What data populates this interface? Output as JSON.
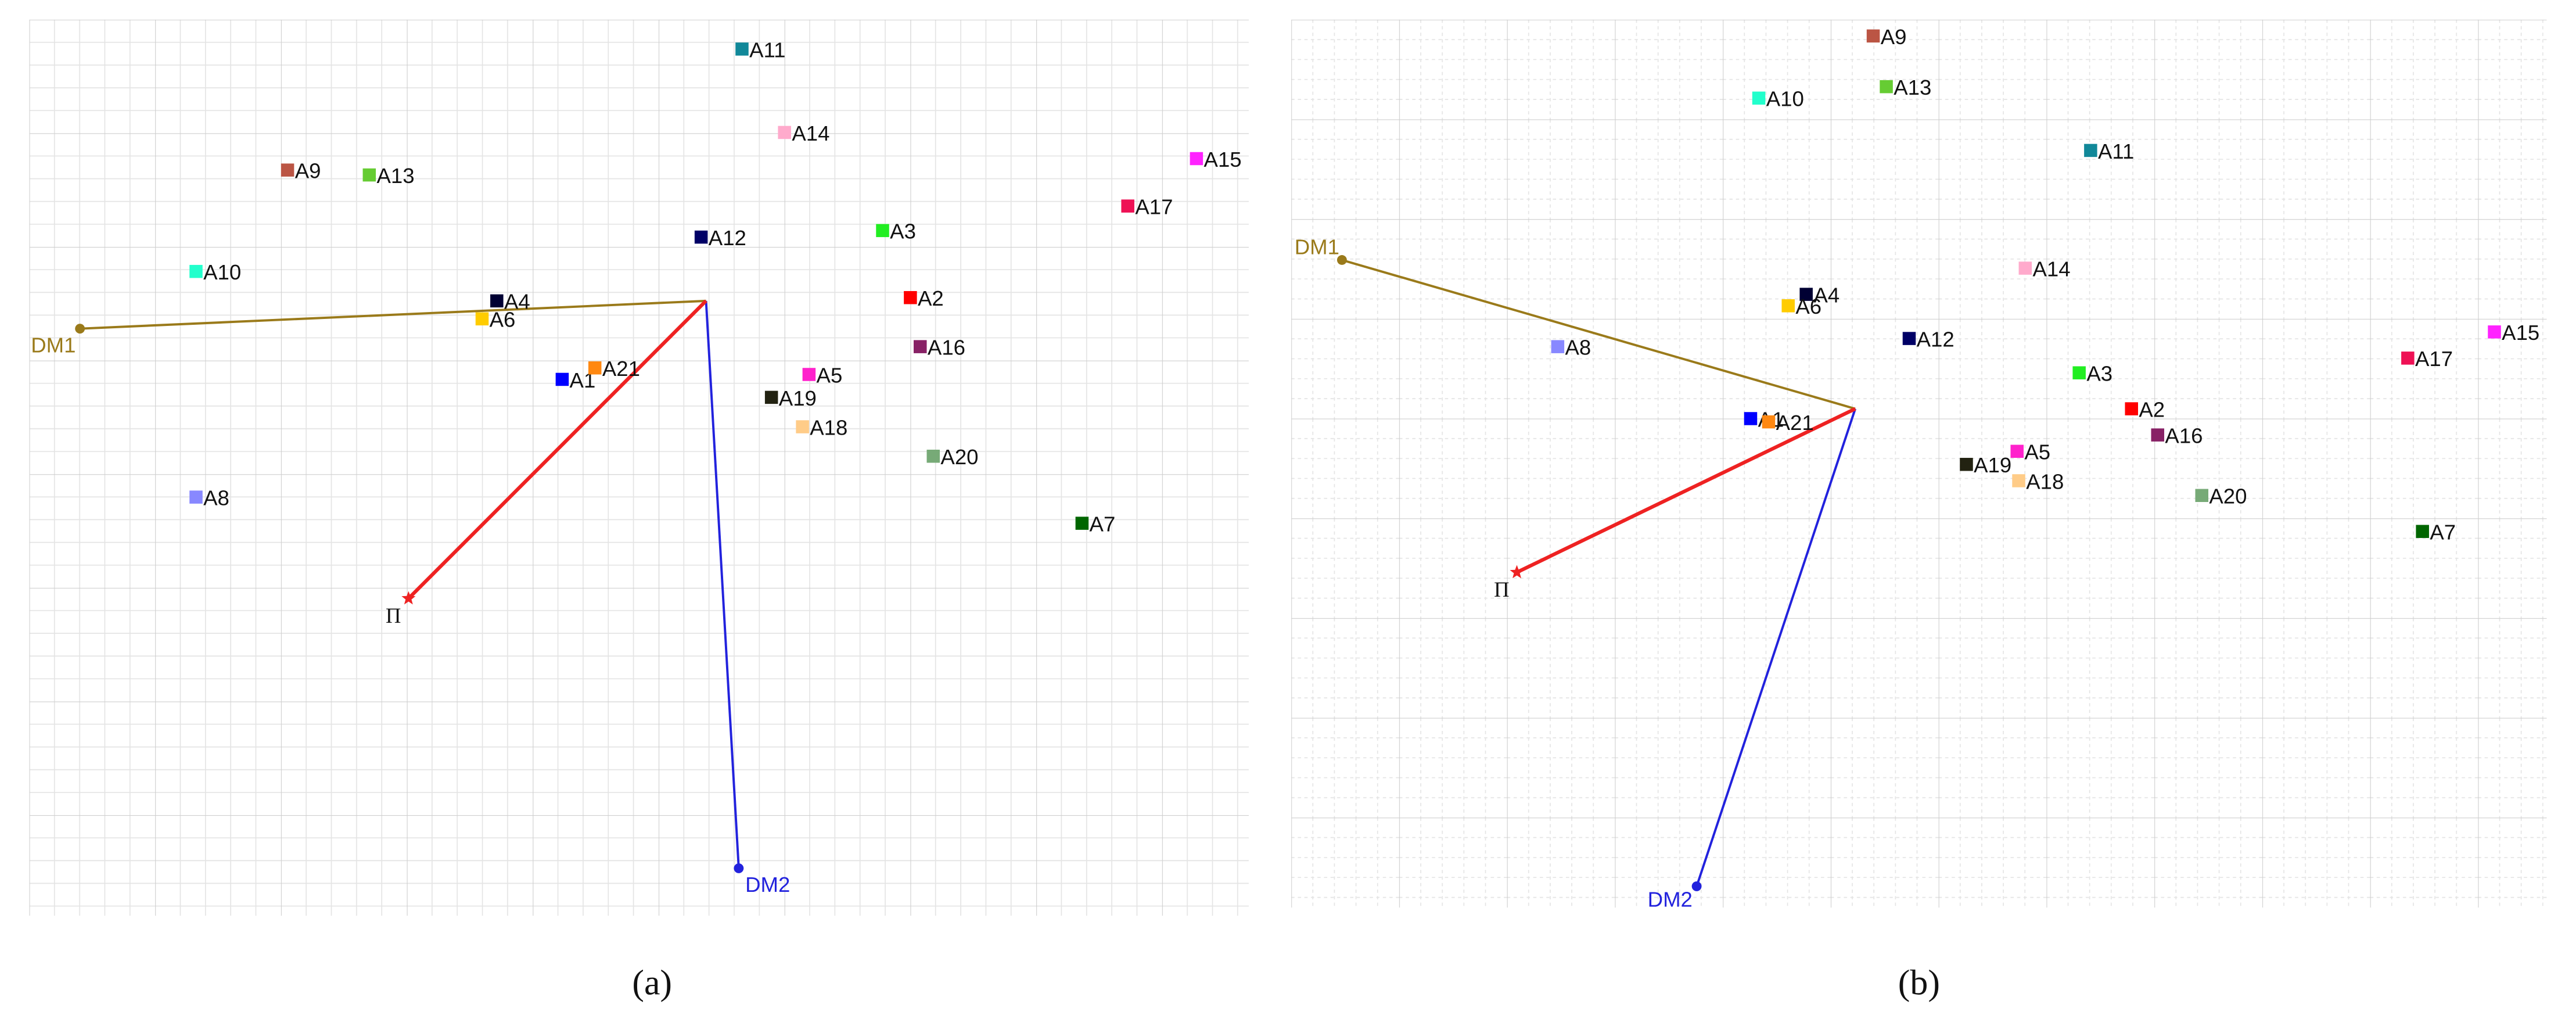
{
  "chart_data": [
    {
      "type": "scatter",
      "caption": "(a)",
      "grid": true,
      "xlim": [
        -414,
        332
      ],
      "ylim": [
        -376,
        172
      ],
      "points": [
        {
          "label": "A1",
          "x": -88,
          "y": -48,
          "color": "#0000ff"
        },
        {
          "label": "A2",
          "x": 125,
          "y": 2,
          "color": "#ff0000"
        },
        {
          "label": "A3",
          "x": 108,
          "y": 43,
          "color": "#22ee22"
        },
        {
          "label": "A4",
          "x": -128,
          "y": 0,
          "color": "#000033"
        },
        {
          "label": "A5",
          "x": 63,
          "y": -45,
          "color": "#ff22cc"
        },
        {
          "label": "A6",
          "x": -137,
          "y": -11,
          "color": "#ffcc00"
        },
        {
          "label": "A7",
          "x": 230,
          "y": -136,
          "color": "#006600"
        },
        {
          "label": "A8",
          "x": -312,
          "y": -120,
          "color": "#8888ff"
        },
        {
          "label": "A9",
          "x": -256,
          "y": 80,
          "color": "#bb5544"
        },
        {
          "label": "A10",
          "x": -312,
          "y": 18,
          "color": "#22ffcc"
        },
        {
          "label": "A11",
          "x": 22,
          "y": 154,
          "color": "#118899"
        },
        {
          "label": "A12",
          "x": -3,
          "y": 39,
          "color": "#000066"
        },
        {
          "label": "A13",
          "x": -206,
          "y": 77,
          "color": "#66cc33"
        },
        {
          "label": "A14",
          "x": 48,
          "y": 103,
          "color": "#ffaacc"
        },
        {
          "label": "A15",
          "x": 300,
          "y": 87,
          "color": "#ff22ff"
        },
        {
          "label": "A16",
          "x": 131,
          "y": -28,
          "color": "#882266"
        },
        {
          "label": "A17",
          "x": 258,
          "y": 58,
          "color": "#ee1155"
        },
        {
          "label": "A18",
          "x": 59,
          "y": -77,
          "color": "#ffcc88"
        },
        {
          "label": "A19",
          "x": 40,
          "y": -59,
          "color": "#222211"
        },
        {
          "label": "A20",
          "x": 139,
          "y": -95,
          "color": "#77aa77"
        },
        {
          "label": "A21",
          "x": -68,
          "y": -41,
          "color": "#ff8811"
        }
      ],
      "vectors": [
        {
          "label": "DM1",
          "x": -383,
          "y": -17,
          "color": "#9a7a1a"
        },
        {
          "label": "DM2",
          "x": 20,
          "y": -347,
          "color": "#2222dd"
        },
        {
          "label": "Π",
          "x": -182,
          "y": -182,
          "color": "#ee2222"
        }
      ]
    },
    {
      "type": "scatter",
      "caption": "(b)",
      "grid": true,
      "xlim": [
        -345,
        423
      ],
      "ylim": [
        -305,
        238
      ],
      "points": [
        {
          "label": "A1",
          "x": -64,
          "y": -6,
          "color": "#0000ff"
        },
        {
          "label": "A2",
          "x": 169,
          "y": 0,
          "color": "#ff0000"
        },
        {
          "label": "A3",
          "x": 137,
          "y": 22,
          "color": "#22ee22"
        },
        {
          "label": "A4",
          "x": -30,
          "y": 70,
          "color": "#000033"
        },
        {
          "label": "A5",
          "x": 99,
          "y": -26,
          "color": "#ff22cc"
        },
        {
          "label": "A6",
          "x": -41,
          "y": 63,
          "color": "#ffcc00"
        },
        {
          "label": "A7",
          "x": 347,
          "y": -75,
          "color": "#006600"
        },
        {
          "label": "A8",
          "x": -182,
          "y": 38,
          "color": "#8888ff"
        },
        {
          "label": "A9",
          "x": 11,
          "y": 228,
          "color": "#bb5544"
        },
        {
          "label": "A10",
          "x": -59,
          "y": 190,
          "color": "#22ffcc"
        },
        {
          "label": "A11",
          "x": 144,
          "y": 158,
          "color": "#118899"
        },
        {
          "label": "A12",
          "x": 33,
          "y": 43,
          "color": "#000066"
        },
        {
          "label": "A13",
          "x": 19,
          "y": 197,
          "color": "#66cc33"
        },
        {
          "label": "A14",
          "x": 104,
          "y": 86,
          "color": "#ffaacc"
        },
        {
          "label": "A15",
          "x": 391,
          "y": 47,
          "color": "#ff22ff"
        },
        {
          "label": "A16",
          "x": 185,
          "y": -16,
          "color": "#882266"
        },
        {
          "label": "A17",
          "x": 338,
          "y": 31,
          "color": "#ee1155"
        },
        {
          "label": "A18",
          "x": 100,
          "y": -44,
          "color": "#ffcc88"
        },
        {
          "label": "A19",
          "x": 68,
          "y": -34,
          "color": "#222211"
        },
        {
          "label": "A20",
          "x": 212,
          "y": -53,
          "color": "#77aa77"
        },
        {
          "label": "A21",
          "x": -53,
          "y": -8,
          "color": "#ff8811"
        }
      ],
      "vectors": [
        {
          "label": "DM1",
          "x": -314,
          "y": 91,
          "color": "#9a7a1a"
        },
        {
          "label": "DM2",
          "x": -97,
          "y": -292,
          "color": "#2222dd"
        },
        {
          "label": "Π",
          "x": -207,
          "y": -100,
          "color": "#ee2222"
        }
      ]
    }
  ]
}
